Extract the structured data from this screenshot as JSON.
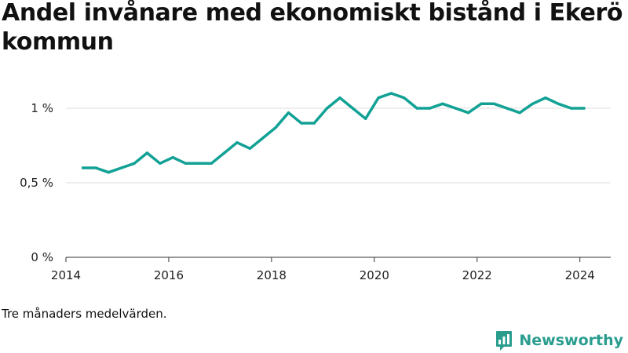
{
  "title": "Andel invånare med ekonomiskt bistånd i Ekerö kommun",
  "note": "Tre månaders medelvärden.",
  "brand": {
    "name": "Newsworthy",
    "color": "#2a9d8f"
  },
  "chart_data": {
    "type": "line",
    "title": "Andel invånare med ekonomiskt bistånd i Ekerö kommun",
    "xlabel": "",
    "ylabel": "",
    "line_color": "#12a195",
    "grid": true,
    "xlim": [
      2014,
      2024.6
    ],
    "ylim": [
      0,
      1.2
    ],
    "x_ticks": [
      2014,
      2016,
      2018,
      2020,
      2022,
      2024
    ],
    "x_tick_labels": [
      "2014",
      "2016",
      "2018",
      "2020",
      "2022",
      "2024"
    ],
    "y_ticks": [
      0,
      0.5,
      1
    ],
    "y_tick_labels": [
      "0 %",
      "0,5 %",
      "1 %"
    ],
    "series": [
      {
        "x": [
          2014.33,
          2014.58,
          2014.83,
          2015.08,
          2015.33,
          2015.58,
          2015.83,
          2016.08,
          2016.33,
          2016.58,
          2016.83,
          2017.08,
          2017.33,
          2017.58,
          2017.83,
          2018.08,
          2018.33,
          2018.58,
          2018.83,
          2019.08,
          2019.33,
          2019.58,
          2019.83,
          2020.08,
          2020.33,
          2020.58,
          2020.83,
          2021.08,
          2021.33,
          2021.58,
          2021.83,
          2022.08,
          2022.33,
          2022.58,
          2022.83,
          2023.08,
          2023.33,
          2023.58,
          2023.83,
          2024.08
        ],
        "values": [
          0.6,
          0.6,
          0.57,
          0.6,
          0.63,
          0.7,
          0.63,
          0.67,
          0.63,
          0.63,
          0.63,
          0.7,
          0.77,
          0.73,
          0.8,
          0.87,
          0.97,
          0.9,
          0.9,
          1.0,
          1.07,
          1.0,
          0.93,
          1.07,
          1.1,
          1.07,
          1.0,
          1.0,
          1.03,
          1.0,
          0.97,
          1.03,
          1.03,
          1.0,
          0.97,
          1.03,
          1.07,
          1.03,
          1.0,
          1.0
        ]
      }
    ]
  }
}
